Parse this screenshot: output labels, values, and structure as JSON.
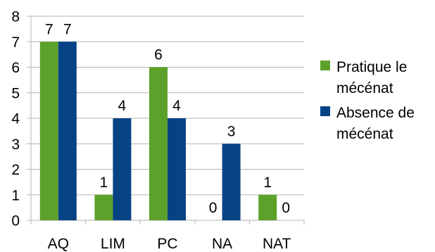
{
  "chart_data": {
    "type": "bar",
    "categories": [
      "AQ",
      "LIM",
      "PC",
      "NA",
      "NAT"
    ],
    "series": [
      {
        "name": "Pratique le mécénat",
        "legend_lines": [
          "Pratique le",
          "mécénat"
        ],
        "values": [
          7,
          1,
          6,
          0,
          1
        ],
        "color": "#5ca22a"
      },
      {
        "name": "Absence de mécénat",
        "legend_lines": [
          "Absence de",
          "mécénat"
        ],
        "values": [
          7,
          4,
          4,
          3,
          0
        ],
        "color": "#064385"
      }
    ],
    "ylim": [
      0,
      8
    ],
    "yticks": [
      0,
      1,
      2,
      3,
      4,
      5,
      6,
      7,
      8
    ],
    "grid": true,
    "legend": "right",
    "data_labels": true
  }
}
